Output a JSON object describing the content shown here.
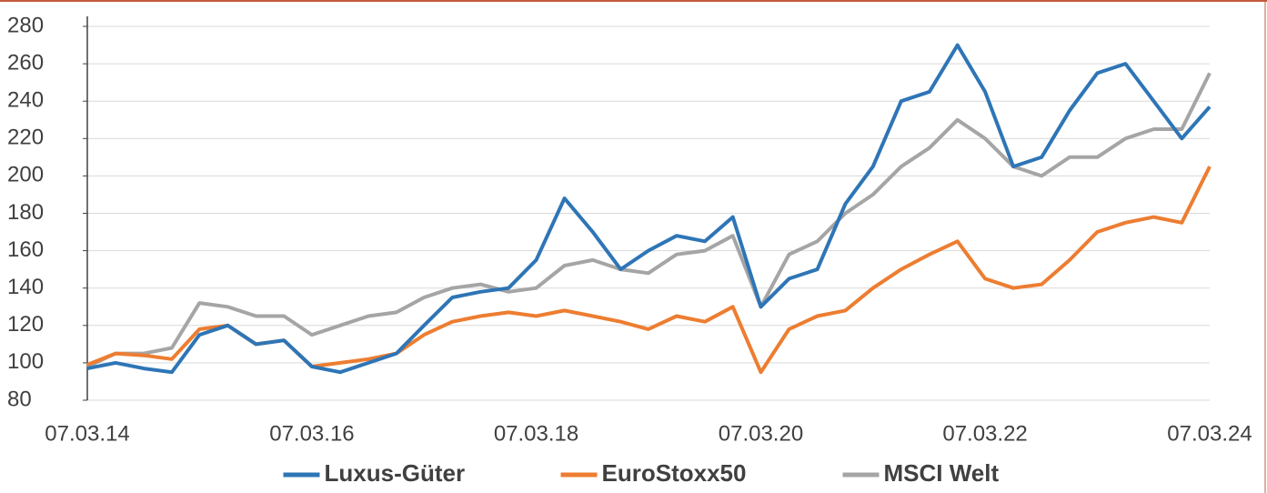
{
  "chart_data": {
    "type": "line",
    "x": [
      "07.03.14",
      "07.06.14",
      "07.09.14",
      "07.12.14",
      "07.03.15",
      "07.06.15",
      "07.09.15",
      "07.12.15",
      "07.03.16",
      "07.06.16",
      "07.09.16",
      "07.12.16",
      "07.03.17",
      "07.06.17",
      "07.09.17",
      "07.12.17",
      "07.03.18",
      "07.06.18",
      "07.09.18",
      "07.12.18",
      "07.03.19",
      "07.06.19",
      "07.09.19",
      "07.12.19",
      "07.03.20",
      "07.06.20",
      "07.09.20",
      "07.12.20",
      "07.03.21",
      "07.06.21",
      "07.09.21",
      "07.12.21",
      "07.03.22",
      "07.06.22",
      "07.09.22",
      "07.12.22",
      "07.03.23",
      "07.06.23",
      "07.09.23",
      "07.12.23",
      "07.03.24"
    ],
    "series": [
      {
        "name": "Luxus-Güter",
        "color": "#2e75b6",
        "values": [
          97,
          100,
          97,
          95,
          115,
          120,
          110,
          112,
          98,
          95,
          100,
          105,
          120,
          135,
          138,
          140,
          155,
          188,
          170,
          150,
          160,
          168,
          165,
          178,
          130,
          145,
          150,
          185,
          205,
          240,
          245,
          270,
          245,
          205,
          210,
          235,
          255,
          260,
          240,
          220,
          237
        ]
      },
      {
        "name": "EuroStoxx50",
        "color": "#ed7d31",
        "values": [
          99,
          105,
          104,
          102,
          118,
          120,
          110,
          112,
          98,
          100,
          102,
          105,
          115,
          122,
          125,
          127,
          125,
          128,
          125,
          122,
          118,
          125,
          122,
          130,
          95,
          118,
          125,
          128,
          140,
          150,
          158,
          165,
          145,
          140,
          142,
          155,
          170,
          175,
          178,
          175,
          205
        ]
      },
      {
        "name": "MSCI Welt",
        "color": "#a5a5a5",
        "values": [
          98,
          105,
          105,
          108,
          132,
          130,
          125,
          125,
          115,
          120,
          125,
          127,
          135,
          140,
          142,
          138,
          140,
          152,
          155,
          150,
          148,
          158,
          160,
          168,
          130,
          158,
          165,
          180,
          190,
          205,
          215,
          230,
          220,
          205,
          200,
          210,
          210,
          220,
          225,
          225,
          255
        ]
      }
    ],
    "xlim": [
      "07.03.14",
      "07.03.24"
    ],
    "xticks": [
      "07.03.14",
      "07.03.16",
      "07.03.18",
      "07.03.20",
      "07.03.22",
      "07.03.24"
    ],
    "ylim": [
      80,
      280
    ],
    "yticks": [
      80,
      100,
      120,
      140,
      160,
      180,
      200,
      220,
      240,
      260,
      280
    ],
    "grid": true,
    "legend": "bottom"
  }
}
